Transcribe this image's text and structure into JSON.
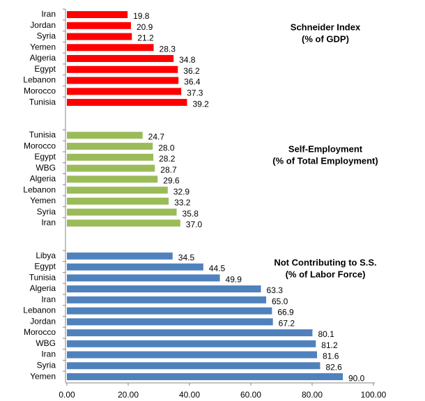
{
  "chart_data": {
    "type": "bar",
    "orientation": "horizontal",
    "xlim": [
      0,
      100
    ],
    "xticks": [
      {
        "value": 0,
        "label": "0.00"
      },
      {
        "value": 20,
        "label": "20.00"
      },
      {
        "value": 40,
        "label": "40.00"
      },
      {
        "value": 60,
        "label": "60.00"
      },
      {
        "value": 80,
        "label": "80.00"
      },
      {
        "value": 100,
        "label": "100.00"
      }
    ],
    "groups": [
      {
        "title": [
          "Schneider Index",
          "(% of GDP)"
        ],
        "color": "#ff0000",
        "categories": [
          "Iran",
          "Jordan",
          "Syria",
          "Yemen",
          "Algeria",
          "Egypt",
          "Lebanon",
          "Morocco",
          "Tunisia"
        ],
        "values": [
          19.8,
          20.9,
          21.2,
          28.3,
          34.8,
          36.2,
          36.4,
          37.3,
          39.2
        ],
        "value_labels": [
          "19.8",
          "20.9",
          "21.2",
          "28.3",
          "34.8",
          "36.2",
          "36.4",
          "37.3",
          "39.2"
        ]
      },
      {
        "title": [
          "Self-Employment",
          "(% of Total Employment)"
        ],
        "color": "#9bbb59",
        "categories": [
          "Tunisia",
          "Morocco",
          "Egypt",
          "WBG",
          "Algeria",
          "Lebanon",
          "Yemen",
          "Syria",
          "Iran"
        ],
        "values": [
          24.7,
          28.0,
          28.2,
          28.7,
          29.6,
          32.9,
          33.2,
          35.8,
          37.0
        ],
        "value_labels": [
          "24.7",
          "28.0",
          "28.2",
          "28.7",
          "29.6",
          "32.9",
          "33.2",
          "35.8",
          "37.0"
        ]
      },
      {
        "title": [
          "Not Contributing to S.S.",
          "(% of Labor Force)"
        ],
        "color": "#4f81bd",
        "categories": [
          "Libya",
          "Egypt",
          "Tunisia",
          "Algeria",
          "Iran",
          "Lebanon",
          "Jordan",
          "Morocco",
          "WBG",
          "Iran",
          "Syria",
          "Yemen"
        ],
        "values": [
          34.5,
          44.5,
          49.9,
          63.3,
          65.0,
          66.9,
          67.2,
          80.1,
          81.2,
          81.6,
          82.6,
          90.0
        ],
        "value_labels": [
          "34.5",
          "44.5",
          "49.9",
          "63.3",
          "65.0",
          "66.9",
          "67.2",
          "80.1",
          "81.2",
          "81.6",
          "82.6",
          "90.0"
        ]
      }
    ]
  }
}
